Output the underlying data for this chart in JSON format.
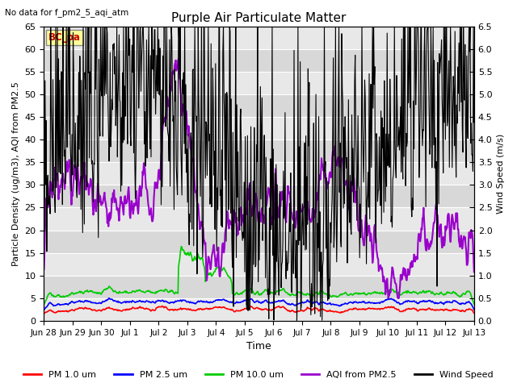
{
  "title": "Purple Air Particulate Matter",
  "subtitle": "No data for f_pm2_5_aqi_atm",
  "xlabel": "Time",
  "ylabel_left": "Particle Density (ug/m3), AQI from PM2.5",
  "ylabel_right": "Wind Speed (m/s)",
  "ylim_left": [
    0,
    65
  ],
  "ylim_right": [
    0.0,
    6.5
  ],
  "yticks_left": [
    0,
    5,
    10,
    15,
    20,
    25,
    30,
    35,
    40,
    45,
    50,
    55,
    60,
    65
  ],
  "yticks_right": [
    0.0,
    0.5,
    1.0,
    1.5,
    2.0,
    2.5,
    3.0,
    3.5,
    4.0,
    4.5,
    5.0,
    5.5,
    6.0,
    6.5
  ],
  "band_colors": [
    "#e8e8e8",
    "#d8d8d8"
  ],
  "box_label": "BC_pa",
  "box_color": "#ffff99",
  "box_text_color": "#cc0000",
  "background_color": "#ffffff",
  "grid_color": "#ffffff",
  "legend_items": [
    {
      "label": "PM 1.0 um",
      "color": "#ff0000",
      "lw": 1.2
    },
    {
      "label": "PM 2.5 um",
      "color": "#0000ff",
      "lw": 1.2
    },
    {
      "label": "PM 10.0 um",
      "color": "#00cc00",
      "lw": 1.2
    },
    {
      "label": "AQI from PM2.5",
      "color": "#9900cc",
      "lw": 1.5
    },
    {
      "label": "Wind Speed",
      "color": "#000000",
      "lw": 0.8
    }
  ],
  "xticklabels": [
    "Jun 28",
    "Jun 29",
    "Jun 30",
    "Jul 1",
    "Jul 2",
    "Jul 3",
    "Jul 4",
    "Jul 5",
    "Jul 6",
    "Jul 7",
    "Jul 8",
    "Jul 9",
    "Jul 10",
    "Jul 11",
    "Jul 12",
    "Jul 13"
  ],
  "figsize": [
    6.4,
    4.8
  ],
  "dpi": 100
}
